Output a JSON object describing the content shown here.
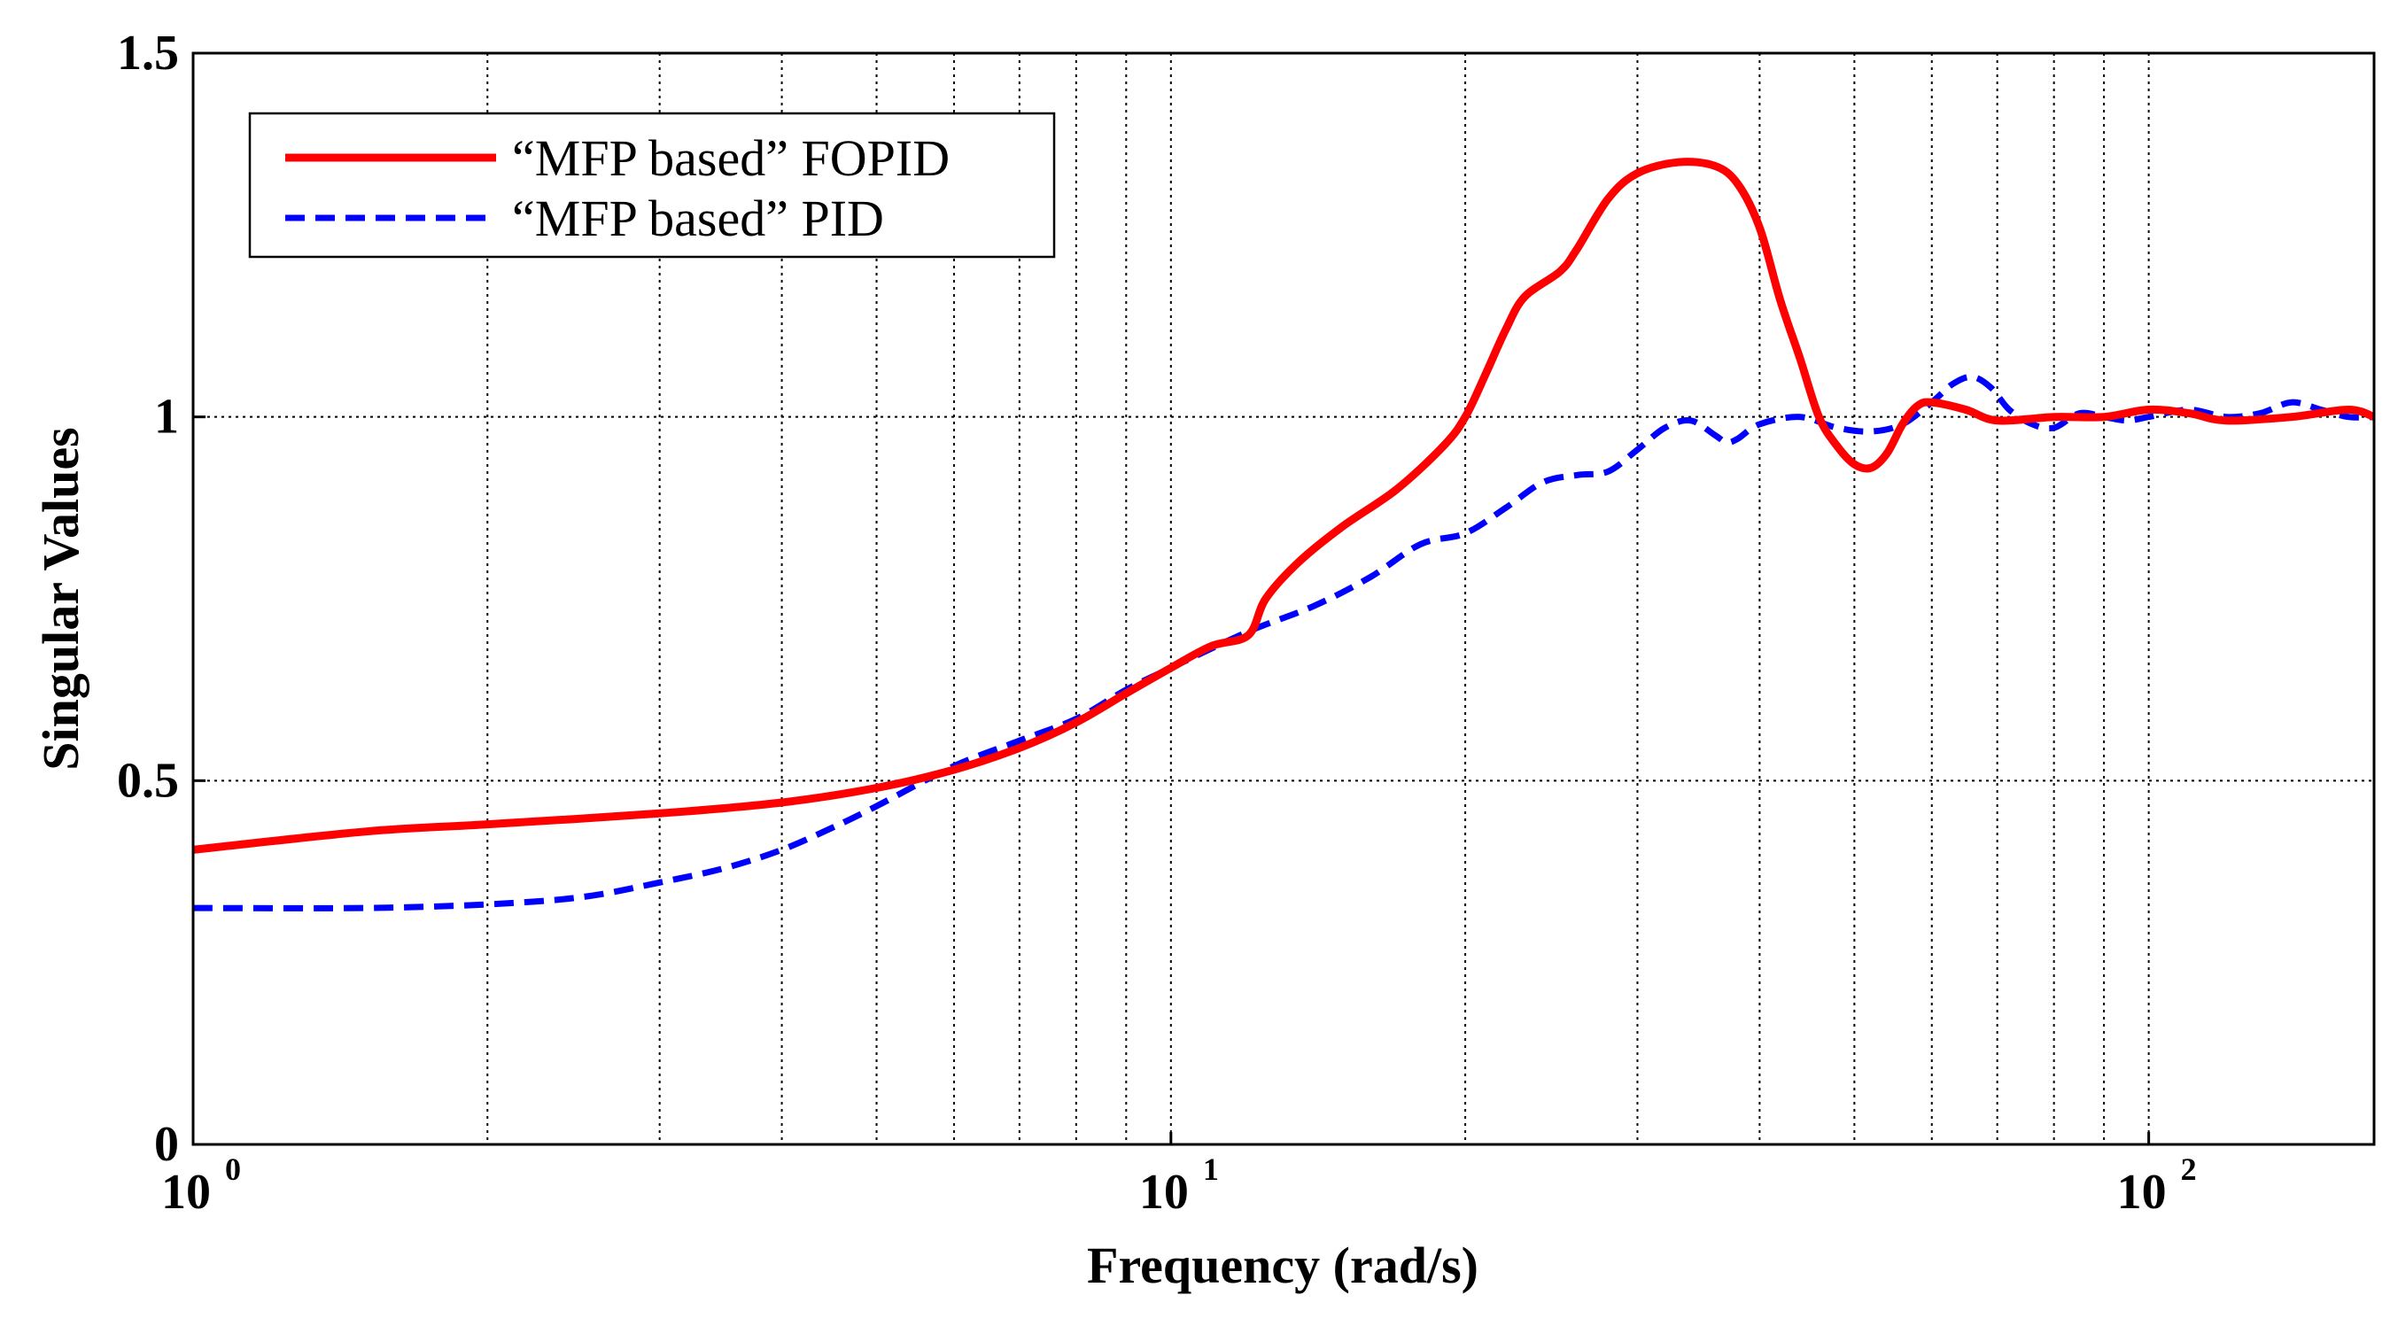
{
  "chart_data": {
    "type": "line",
    "title": "",
    "xlabel": "Frequency (rad/s)",
    "ylabel": "Singular Values",
    "xscale": "log",
    "xlim": [
      1,
      170
    ],
    "ylim": [
      0,
      1.5
    ],
    "grid": true,
    "legend_position": "top-left",
    "x_ticks": [
      {
        "base": "10",
        "exp": "0",
        "value": 1
      },
      {
        "base": "10",
        "exp": "1",
        "value": 10
      },
      {
        "base": "10",
        "exp": "2",
        "value": 100
      }
    ],
    "y_ticks": [
      {
        "label": "0",
        "value": 0
      },
      {
        "label": "0.5",
        "value": 0.5
      },
      {
        "label": "1",
        "value": 1
      },
      {
        "label": "1.5",
        "value": 1.5
      }
    ],
    "series": [
      {
        "name": "“MFP based” FOPID",
        "color": "#ff0000",
        "style": "solid",
        "points": [
          [
            1.0,
            0.405
          ],
          [
            1.5,
            0.43
          ],
          [
            2.0,
            0.44
          ],
          [
            3.0,
            0.455
          ],
          [
            4.0,
            0.47
          ],
          [
            5.0,
            0.49
          ],
          [
            6.0,
            0.515
          ],
          [
            7.0,
            0.545
          ],
          [
            8.0,
            0.58
          ],
          [
            9.0,
            0.62
          ],
          [
            10.0,
            0.655
          ],
          [
            11.0,
            0.685
          ],
          [
            12.0,
            0.7
          ],
          [
            12.5,
            0.75
          ],
          [
            13.5,
            0.8
          ],
          [
            15.0,
            0.85
          ],
          [
            17.0,
            0.9
          ],
          [
            19.0,
            0.96
          ],
          [
            20.0,
            1.0
          ],
          [
            21.0,
            1.06
          ],
          [
            22.0,
            1.12
          ],
          [
            23.0,
            1.165
          ],
          [
            25.0,
            1.2
          ],
          [
            26.0,
            1.23
          ],
          [
            28.0,
            1.3
          ],
          [
            30.0,
            1.335
          ],
          [
            33.0,
            1.35
          ],
          [
            36.0,
            1.345
          ],
          [
            38.0,
            1.32
          ],
          [
            40.0,
            1.26
          ],
          [
            42.0,
            1.16
          ],
          [
            44.0,
            1.08
          ],
          [
            46.0,
            1.0
          ],
          [
            48.0,
            0.96
          ],
          [
            50.0,
            0.935
          ],
          [
            52.0,
            0.93
          ],
          [
            54.0,
            0.95
          ],
          [
            56.0,
            0.99
          ],
          [
            58.0,
            1.015
          ],
          [
            60.0,
            1.02
          ],
          [
            65.0,
            1.01
          ],
          [
            70.0,
            0.995
          ],
          [
            80.0,
            1.0
          ],
          [
            90.0,
            1.0
          ],
          [
            100.0,
            1.01
          ],
          [
            110.0,
            1.005
          ],
          [
            120.0,
            0.995
          ],
          [
            140.0,
            1.0
          ],
          [
            160.0,
            1.01
          ],
          [
            170.0,
            1.0
          ]
        ]
      },
      {
        "name": "“MFP based” PID",
        "color": "#0000ff",
        "style": "dashed",
        "points": [
          [
            1.0,
            0.325
          ],
          [
            1.5,
            0.325
          ],
          [
            2.0,
            0.33
          ],
          [
            2.5,
            0.34
          ],
          [
            3.0,
            0.36
          ],
          [
            3.5,
            0.38
          ],
          [
            4.0,
            0.405
          ],
          [
            4.5,
            0.435
          ],
          [
            5.0,
            0.465
          ],
          [
            6.0,
            0.52
          ],
          [
            7.0,
            0.555
          ],
          [
            8.0,
            0.585
          ],
          [
            9.0,
            0.625
          ],
          [
            10.0,
            0.655
          ],
          [
            12.0,
            0.705
          ],
          [
            14.0,
            0.74
          ],
          [
            16.0,
            0.78
          ],
          [
            18.0,
            0.825
          ],
          [
            20.0,
            0.84
          ],
          [
            22.0,
            0.875
          ],
          [
            24.0,
            0.91
          ],
          [
            26.0,
            0.92
          ],
          [
            28.0,
            0.925
          ],
          [
            30.0,
            0.955
          ],
          [
            32.0,
            0.985
          ],
          [
            34.0,
            0.995
          ],
          [
            36.0,
            0.975
          ],
          [
            37.0,
            0.965
          ],
          [
            38.0,
            0.97
          ],
          [
            40.0,
            0.99
          ],
          [
            44.0,
            1.0
          ],
          [
            48.0,
            0.985
          ],
          [
            52.0,
            0.98
          ],
          [
            56.0,
            0.99
          ],
          [
            60.0,
            1.02
          ],
          [
            63.0,
            1.045
          ],
          [
            66.0,
            1.055
          ],
          [
            69.0,
            1.04
          ],
          [
            72.0,
            1.01
          ],
          [
            76.0,
            0.99
          ],
          [
            80.0,
            0.985
          ],
          [
            85.0,
            1.005
          ],
          [
            90.0,
            1.0
          ],
          [
            95.0,
            0.995
          ],
          [
            100.0,
            1.0
          ],
          [
            110.0,
            1.01
          ],
          [
            120.0,
            1.0
          ],
          [
            130.0,
            1.005
          ],
          [
            140.0,
            1.02
          ],
          [
            150.0,
            1.01
          ],
          [
            160.0,
            1.0
          ],
          [
            170.0,
            1.0
          ]
        ]
      }
    ]
  }
}
